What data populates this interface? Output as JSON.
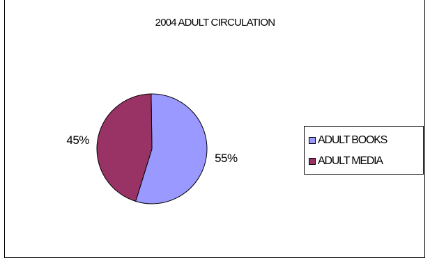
{
  "chart_data": {
    "type": "pie",
    "title": "2004 ADULT CIRCULATION",
    "categories": [
      "ADULT BOOKS",
      "ADULT MEDIA"
    ],
    "values": [
      55,
      45
    ],
    "labels": [
      "55%",
      "45%"
    ],
    "colors": [
      "#9999ff",
      "#993366"
    ],
    "legend_position": "right"
  }
}
